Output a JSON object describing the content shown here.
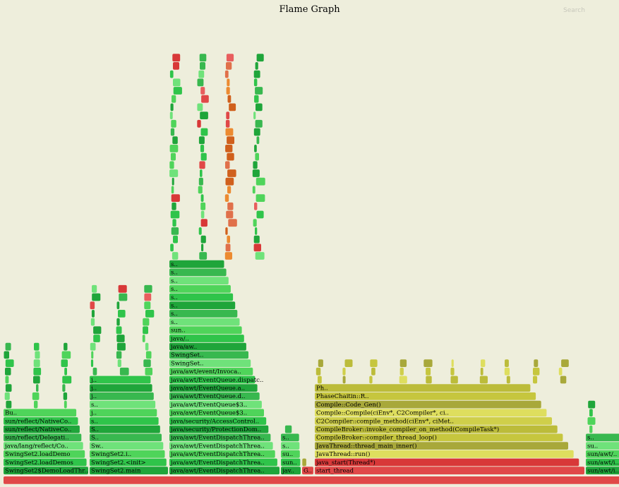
{
  "chart_data": {
    "type": "flame",
    "title": "Flame Graph",
    "search_label": "Search",
    "stacks": [
      {
        "w": 121,
        "frames": [
          "SwingSet2$DemoLoadThr..",
          "SwingSet2.loadDemos",
          "SwingSet2.loadDemo",
          "java/lang/reflect/Co..",
          "sun/reflect/Delegati..",
          "sun/reflect/NativeCo..",
          "sun/reflect/NativeCo..",
          "Bu..",
          "",
          "",
          "",
          "",
          "",
          "",
          "",
          ""
        ]
      },
      {
        "w": 112,
        "frames": [
          "SwingSet2.main",
          "SwingSet2.<init>",
          "SwingSet2.i..",
          "Sw..",
          "S..",
          "S..",
          "s..",
          "j..",
          "s..",
          "j..",
          "j..",
          "j..",
          "",
          "",
          "",
          "",
          "",
          "",
          "",
          "",
          "",
          "",
          ""
        ]
      },
      {
        "w": 157,
        "frames": [
          "java/awt/EventDispatchThrea..",
          "java/awt/EventDispatchThrea..",
          "java/awt/EventDispatchThrea..",
          "java/awt/EventDispatchThrea..",
          "java/awt/EventDispatchThrea..",
          "java/security/ProtectionDom..",
          "java/security/AccessControl..",
          "java/awt/EventQueue$3..",
          "java/awt/EventQueue$3..",
          "java/awt/EventQueue.d..",
          "java/awt/EventQueue.a..",
          "java/awt/EventQueue.dispatc..",
          "java/awt/event/Invoca..",
          "SwingSet..",
          "SwingSet..",
          "java/aw..",
          "java/..",
          "sun..",
          "s..",
          "s..",
          "s..",
          "s..",
          "s..",
          "s..",
          "s..",
          "s..",
          "",
          "",
          "",
          "",
          "",
          "",
          "",
          "",
          "",
          "",
          "",
          "",
          "",
          "",
          "",
          "",
          "",
          "",
          "",
          "",
          "",
          "",
          "",
          "",
          ""
        ]
      },
      {
        "w": 29,
        "frames": [
          "jav..",
          "sun..",
          "su..",
          "s..",
          "s..",
          ""
        ]
      },
      {
        "w": 17,
        "frames": [
          "G..",
          ""
        ]
      },
      {
        "w": 383,
        "frames": [
          "start_thread",
          "java_start(Thread*)",
          "JavaThread::run()",
          "JavaThread::thread_main_inner()",
          "CompileBroker::compiler_thread_loop()",
          "CompileBroker::invoke_compiler_on_method(CompileTask*)",
          "C2Compiler::compile_method(ciEnv*, ciMet..",
          "Compile::Compile(ciEnv*, C2Compiler*, ci..",
          "Compile::Code_Gen()",
          "PhaseChaitin::R..",
          "Ph..",
          "",
          "",
          ""
        ]
      },
      {
        "w": 56,
        "frames": [
          "sun/awt/i..",
          "sun/awt/i..",
          "sun/awt/..",
          "su..",
          "s..",
          "",
          "",
          "",
          ""
        ]
      }
    ],
    "palette": {
      "background": "#eeeedc",
      "java": [
        "#1fa53a",
        "#2fc44a",
        "#4fd45a",
        "#6fe27a",
        "#38b84f"
      ],
      "cpp": [
        "#bcbc3a",
        "#cfcf4a",
        "#dede5e",
        "#a8a83a",
        "#c6c63e"
      ],
      "kernel": [
        "#e0704a",
        "#ec8a30",
        "#d0601c"
      ],
      "hot": [
        "#e04848",
        "#d83838",
        "#e85e5e"
      ]
    }
  }
}
